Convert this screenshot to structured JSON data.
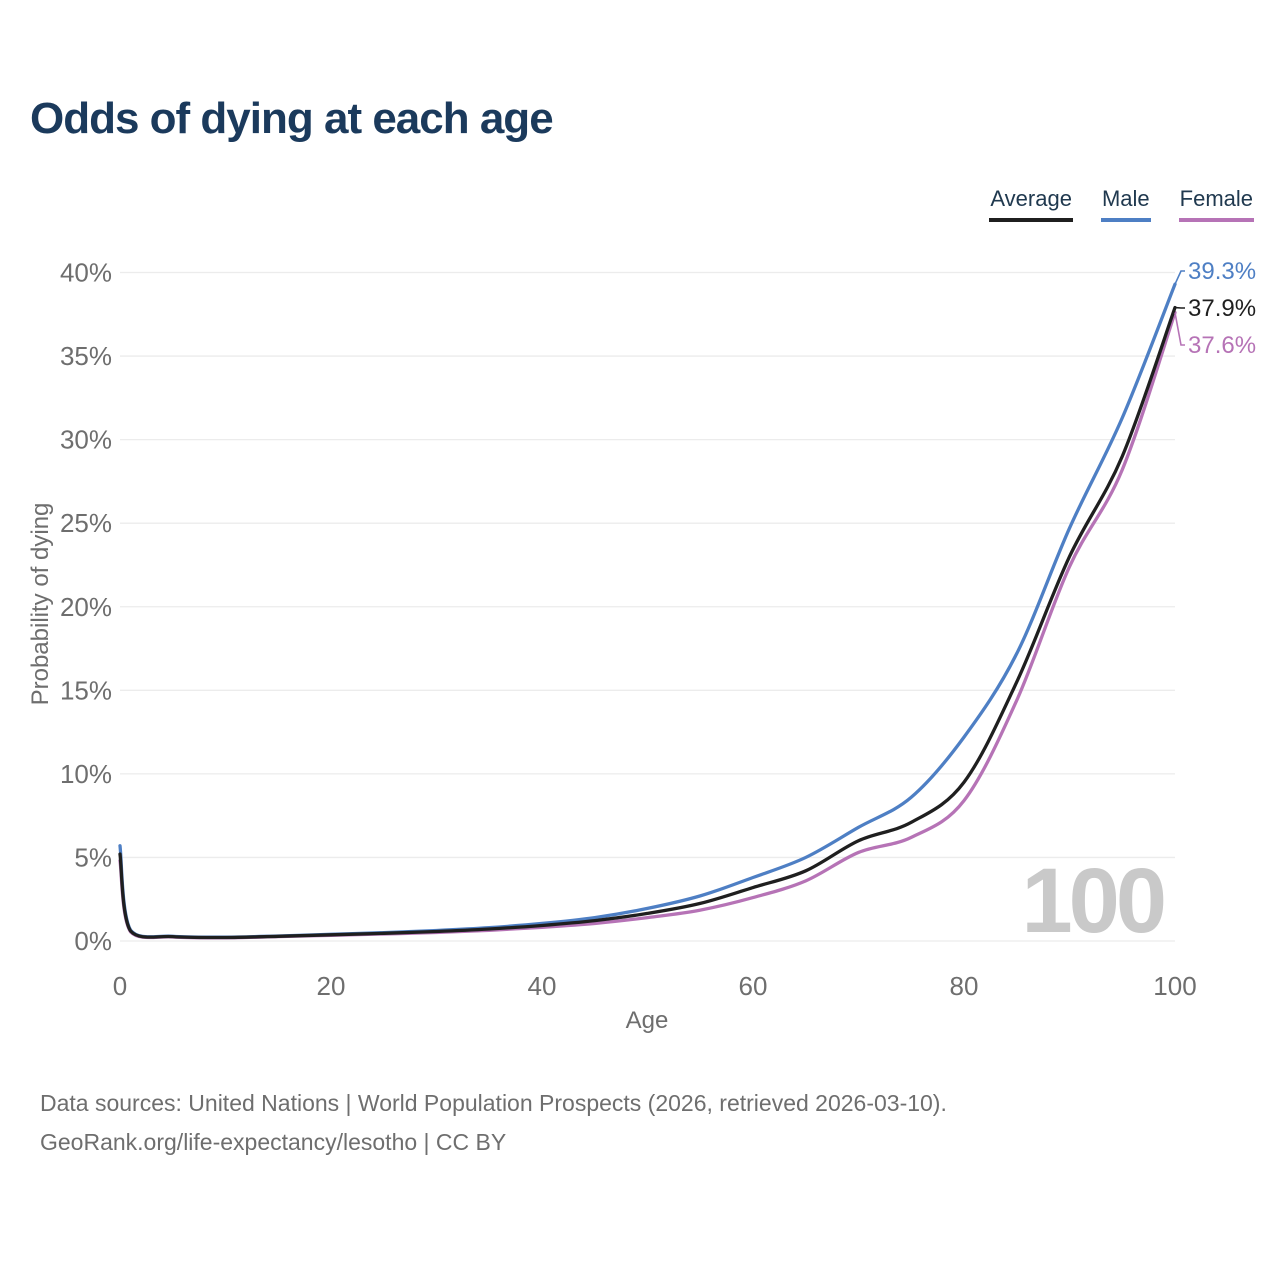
{
  "title": "Odds of dying at each age",
  "legend": {
    "items": [
      {
        "id": "average",
        "label": "Average",
        "color": "#1f1f1f"
      },
      {
        "id": "male",
        "label": "Male",
        "color": "#4e7fc4"
      },
      {
        "id": "female",
        "label": "Female",
        "color": "#b673b6"
      }
    ]
  },
  "chart_data": {
    "type": "line",
    "title": "Odds of dying at each age",
    "xlabel": "Age",
    "ylabel": "Probability of dying",
    "xlim": [
      0,
      100
    ],
    "ylim": [
      0,
      40
    ],
    "x_ticks": [
      0,
      20,
      40,
      60,
      80,
      100
    ],
    "y_tick_values": [
      0,
      5,
      10,
      15,
      20,
      25,
      30,
      35,
      40
    ],
    "y_tick_labels": [
      "0%",
      "5%",
      "10%",
      "15%",
      "20%",
      "25%",
      "30%",
      "35%",
      "40%"
    ],
    "grid": "horizontal",
    "legend_position": "top-right",
    "watermark": "100",
    "x": [
      0,
      1,
      5,
      10,
      15,
      20,
      25,
      30,
      35,
      40,
      45,
      50,
      55,
      60,
      65,
      70,
      75,
      80,
      85,
      90,
      95,
      100
    ],
    "series": [
      {
        "name": "Male",
        "color": "#4e7fc4",
        "end_label": "39.3%",
        "values": [
          5.7,
          0.65,
          0.28,
          0.23,
          0.3,
          0.4,
          0.5,
          0.63,
          0.8,
          1.05,
          1.4,
          1.95,
          2.7,
          3.8,
          5.0,
          6.8,
          8.6,
          12.2,
          17.2,
          24.7,
          31.3,
          39.3
        ]
      },
      {
        "name": "Female",
        "color": "#b673b6",
        "end_label": "37.6%",
        "values": [
          4.8,
          0.55,
          0.24,
          0.19,
          0.26,
          0.34,
          0.42,
          0.51,
          0.64,
          0.82,
          1.05,
          1.4,
          1.85,
          2.6,
          3.6,
          5.3,
          6.2,
          8.4,
          14.4,
          22.4,
          28.2,
          37.6
        ]
      },
      {
        "name": "Average",
        "color": "#1f1f1f",
        "end_label": "37.9%",
        "values": [
          5.2,
          0.6,
          0.26,
          0.21,
          0.28,
          0.37,
          0.46,
          0.57,
          0.72,
          0.93,
          1.22,
          1.65,
          2.25,
          3.2,
          4.2,
          6.0,
          7.1,
          9.5,
          15.5,
          23.0,
          29.0,
          37.9
        ]
      }
    ]
  },
  "footer": {
    "line1": "Data sources: United Nations | World Population Prospects (2026, retrieved 2026-03-10).",
    "line2": "GeoRank.org/life-expectancy/lesotho | CC BY"
  }
}
